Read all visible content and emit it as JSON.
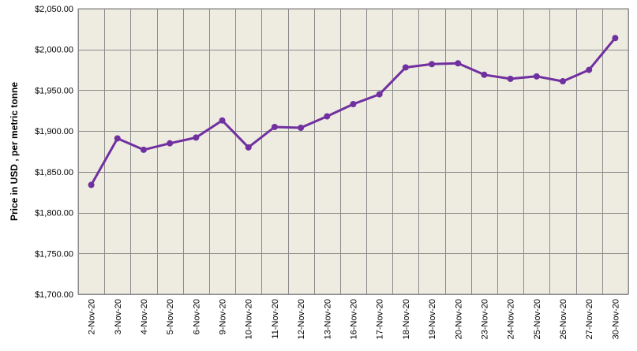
{
  "chart_data": {
    "type": "line",
    "title": "",
    "xlabel": "",
    "ylabel": "Price in USD , per metric tonne",
    "ylim": [
      1700,
      2050
    ],
    "yticks": [
      1700,
      1750,
      1800,
      1850,
      1900,
      1950,
      2000,
      2050
    ],
    "ytick_labels": [
      "$1,700.00",
      "$1,750.00",
      "$1,800.00",
      "$1,850.00",
      "$1,900.00",
      "$1,950.00",
      "$2,000.00",
      "$2,050.00"
    ],
    "grid": true,
    "legend": "none",
    "categories": [
      "2-Nov-20",
      "3-Nov-20",
      "4-Nov-20",
      "5-Nov-20",
      "6-Nov-20",
      "9-Nov-20",
      "10-Nov-20",
      "11-Nov-20",
      "12-Nov-20",
      "13-Nov-20",
      "16-Nov-20",
      "17-Nov-20",
      "18-Nov-20",
      "19-Nov-20",
      "20-Nov-20",
      "23-Nov-20",
      "24-Nov-20",
      "25-Nov-20",
      "26-Nov-20",
      "27-Nov-20",
      "30-Nov-20"
    ],
    "series": [
      {
        "values": [
          1834,
          1891,
          1877,
          1885,
          1892,
          1913,
          1880,
          1905,
          1904,
          1918,
          1933,
          1945,
          1978,
          1982,
          1983,
          1969,
          1964,
          1967,
          1961,
          1975,
          2014
        ]
      }
    ],
    "colors": {
      "line": "#7030a0",
      "plot_background": "#eeece1",
      "gridline": "#8c8c8c"
    }
  }
}
